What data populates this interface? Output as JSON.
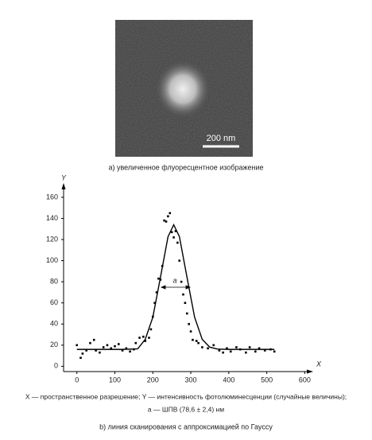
{
  "image": {
    "scale_bar_label": "200 nm",
    "caption": "a)  увеличенное флуоресцентное изображение"
  },
  "chart_data": {
    "type": "scatter",
    "x_label": "X",
    "y_label": "Y",
    "annotation": "a",
    "xlim": [
      -35,
      618
    ],
    "ylim": [
      -5,
      172
    ],
    "xticks": [
      0,
      100,
      200,
      300,
      400,
      500,
      600
    ],
    "yticks": [
      0,
      20,
      40,
      60,
      80,
      100,
      120,
      140,
      160
    ],
    "color": "#000000",
    "points": {
      "x": [
        0,
        10,
        15,
        25,
        35,
        45,
        50,
        60,
        70,
        80,
        90,
        100,
        110,
        120,
        130,
        140,
        150,
        155,
        165,
        175,
        180,
        190,
        195,
        200,
        205,
        210,
        215,
        220,
        225,
        230,
        235,
        240,
        245,
        250,
        255,
        260,
        265,
        270,
        275,
        280,
        285,
        290,
        295,
        300,
        305,
        315,
        320,
        330,
        345,
        360,
        375,
        385,
        395,
        405,
        420,
        430,
        445,
        455,
        470,
        480,
        495,
        510,
        520
      ],
      "y": [
        20,
        8,
        12,
        15,
        22,
        25,
        15,
        13,
        18,
        20,
        17,
        19,
        21,
        15,
        17,
        14,
        16,
        22,
        27,
        28,
        24,
        27,
        35,
        47,
        60,
        70,
        83,
        82,
        95,
        138,
        137,
        142,
        145,
        127,
        122,
        128,
        117,
        100,
        80,
        68,
        60,
        50,
        40,
        33,
        25,
        24,
        22,
        18,
        17,
        20,
        15,
        13,
        17,
        14,
        18,
        16,
        13,
        18,
        14,
        17,
        15,
        16,
        14
      ]
    },
    "fit": {
      "x": [
        0,
        40,
        80,
        120,
        160,
        180,
        200,
        220,
        240,
        255,
        270,
        290,
        310,
        330,
        350,
        370,
        400,
        440,
        480,
        520
      ],
      "y": [
        16,
        16,
        16,
        16,
        16.5,
        25.5,
        46.4,
        84.2,
        122.7,
        134,
        122.7,
        84.2,
        46.4,
        25.5,
        18.1,
        16.3,
        16,
        16,
        16,
        16
      ]
    },
    "legend_lines": [
      "X — пространственное разрешение; Y — интенсивность фотолюминесценции (случайные величины);",
      "a — ШПВ (78,6 ± 2,4) нм"
    ],
    "caption": "b)  линия сканирования с аппроксимацией по Гауссу"
  }
}
